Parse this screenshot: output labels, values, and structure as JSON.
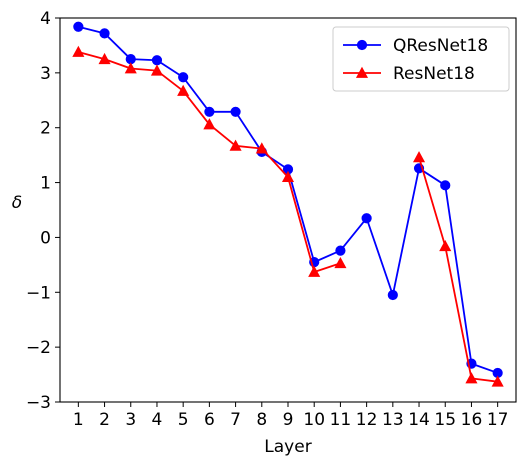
{
  "chart_data": {
    "type": "line",
    "title": "",
    "xlabel": "Layer",
    "ylabel": "δ",
    "x": [
      1,
      2,
      3,
      4,
      5,
      6,
      7,
      8,
      9,
      10,
      11,
      12,
      13,
      14,
      15,
      16,
      17
    ],
    "xticks": [
      "1",
      "2",
      "3",
      "4",
      "5",
      "6",
      "7",
      "8",
      "9",
      "10",
      "11",
      "12",
      "13",
      "14",
      "15",
      "16",
      "17"
    ],
    "xlim": [
      0.3,
      17.7
    ],
    "ylim": [
      -3,
      4
    ],
    "yticks": [
      -3,
      -2,
      -1,
      0,
      1,
      2,
      3,
      4
    ],
    "ytick_labels": [
      "−3",
      "−2",
      "−1",
      "0",
      "1",
      "2",
      "3",
      "4"
    ],
    "grid": false,
    "legend_position": "top-right",
    "series": [
      {
        "name": "QResNet18",
        "color": "#0000ff",
        "marker": "circle",
        "values": [
          3.84,
          3.72,
          3.25,
          3.23,
          2.92,
          2.29,
          2.29,
          1.56,
          1.24,
          -0.45,
          -0.24,
          0.35,
          -1.05,
          1.26,
          0.95,
          -2.3,
          -2.47
        ]
      },
      {
        "name": "ResNet18",
        "color": "#ff0000",
        "marker": "triangle",
        "values": [
          3.38,
          3.25,
          3.08,
          3.04,
          2.67,
          2.06,
          1.67,
          1.62,
          1.1,
          -0.63,
          -0.47,
          null,
          null,
          1.46,
          -0.16,
          -2.57,
          -2.63
        ]
      }
    ]
  }
}
